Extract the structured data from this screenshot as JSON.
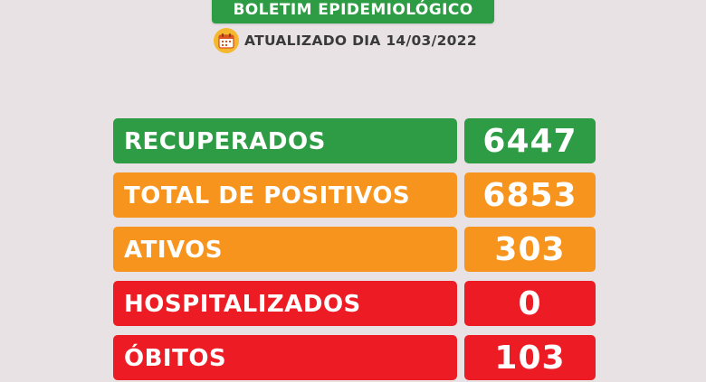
{
  "header": {
    "title": "BOLETIM EPIDEMIOLÓGICO",
    "updated_label": "ATUALIZADO DIA 14/03/2022",
    "calendar_icon": "calendar-icon"
  },
  "stats": [
    {
      "label": "RECUPERADOS",
      "value": "6447",
      "color": "#2e9c44"
    },
    {
      "label": "TOTAL DE POSITIVOS",
      "value": "6853",
      "color": "#f7941d"
    },
    {
      "label": "ATIVOS",
      "value": "303",
      "color": "#f7941d"
    },
    {
      "label": "HOSPITALIZADOS",
      "value": "0",
      "color": "#ed1c24"
    },
    {
      "label": "ÓBITOS",
      "value": "103",
      "color": "#ed1c24"
    }
  ]
}
